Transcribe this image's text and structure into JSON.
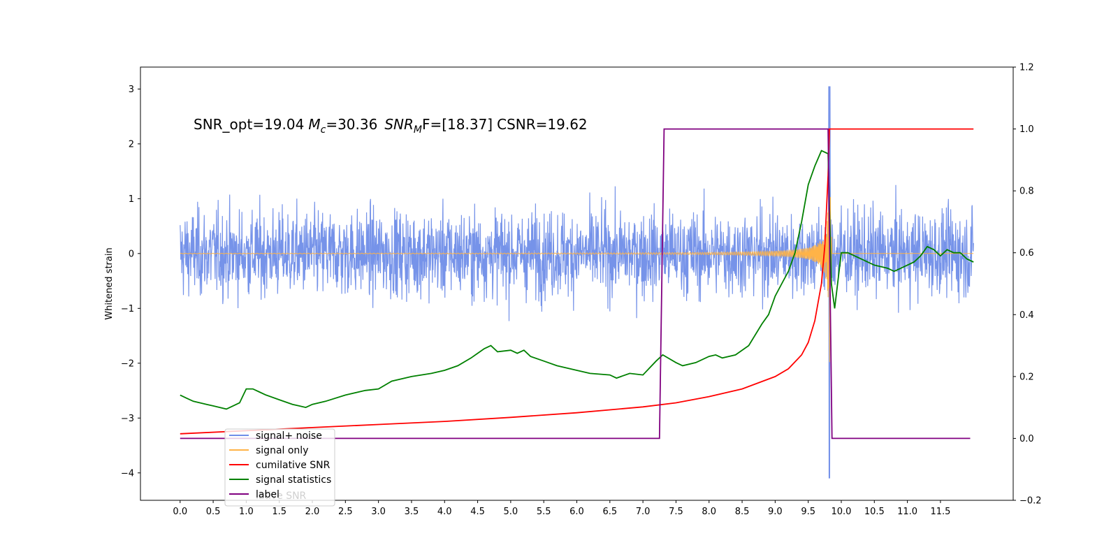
{
  "chart_data": {
    "type": "line",
    "title": "",
    "annotation": {
      "snr_opt_label": "SNR_opt=19.04",
      "mc_symbol": "M",
      "mc_sub": "c",
      "mc_value": "=30.36",
      "mf_symbol": "SNR",
      "mf_sub": "M",
      "mf_value": "F=[18.37]",
      "csnr_label": "CSNR=19.62"
    },
    "xlabel": "",
    "ylabel": "Whitened strain",
    "ylabel_right": "",
    "xlim": [
      -0.6,
      12.6
    ],
    "ylim": [
      -4.5,
      3.4
    ],
    "ylim_right": [
      -0.2,
      1.2
    ],
    "x_ticks": [
      "0.0",
      "0.5",
      "1.0",
      "1.5",
      "2.0",
      "2.5",
      "3.0",
      "3.5",
      "4.0",
      "4.5",
      "5.0",
      "5.5",
      "6.0",
      "6.5",
      "7.0",
      "7.5",
      "8.0",
      "8.5",
      "9.0",
      "9.5",
      "10.0",
      "10.5",
      "11.0",
      "11.5"
    ],
    "y_ticks": [
      "3",
      "2",
      "1",
      "0",
      "−1",
      "−2",
      "−3",
      "−4"
    ],
    "y_ticks_right": [
      "1.2",
      "1.0",
      "0.8",
      "0.6",
      "0.4",
      "0.2",
      "0.0",
      "−0.2"
    ],
    "grid": false,
    "legend_position": "lower-left",
    "series": [
      {
        "name": "signal+ noise",
        "color": "#6f8de8",
        "axis": "left",
        "kind": "noise",
        "x_range": [
          0,
          12.0
        ],
        "typical_range": [
          -1.3,
          1.3
        ],
        "max": 3.05,
        "min": -4.1,
        "peak_at": 9.82
      },
      {
        "name": "signal only",
        "color": "#ffb347",
        "axis": "left",
        "kind": "chirp",
        "merger_time": 9.82,
        "peak_amplitude": 2.7
      },
      {
        "name": "cumilative SNR",
        "color": "#ff0000",
        "axis": "right",
        "x": [
          0,
          1,
          2,
          3,
          4,
          5,
          6,
          7,
          7.5,
          8,
          8.5,
          9,
          9.2,
          9.4,
          9.5,
          9.6,
          9.7,
          9.75,
          9.8,
          9.82,
          9.85,
          12.0
        ],
        "y": [
          0.015,
          0.025,
          0.035,
          0.045,
          0.055,
          0.068,
          0.083,
          0.102,
          0.115,
          0.135,
          0.16,
          0.2,
          0.225,
          0.27,
          0.31,
          0.38,
          0.5,
          0.62,
          0.85,
          1.0,
          1.0,
          1.0
        ]
      },
      {
        "name": "signal statistics",
        "color": "#008000",
        "axis": "right",
        "x": [
          0,
          0.1,
          0.2,
          0.3,
          0.4,
          0.5,
          0.6,
          0.7,
          0.8,
          0.9,
          1.0,
          1.1,
          1.2,
          1.3,
          1.5,
          1.7,
          1.8,
          1.9,
          2.0,
          2.2,
          2.5,
          2.8,
          3.0,
          3.2,
          3.5,
          3.8,
          4.0,
          4.2,
          4.4,
          4.5,
          4.6,
          4.7,
          4.8,
          5.0,
          5.1,
          5.2,
          5.3,
          5.5,
          5.7,
          6.0,
          6.2,
          6.5,
          6.6,
          6.8,
          7.0,
          7.2,
          7.3,
          7.5,
          7.6,
          7.8,
          8.0,
          8.1,
          8.2,
          8.4,
          8.6,
          8.8,
          8.9,
          9.0,
          9.1,
          9.2,
          9.3,
          9.4,
          9.5,
          9.6,
          9.7,
          9.8,
          9.85,
          9.9,
          10.0,
          10.1,
          10.3,
          10.5,
          10.7,
          10.8,
          10.9,
          11.0,
          11.1,
          11.2,
          11.3,
          11.4,
          11.5,
          11.6,
          11.7,
          11.8,
          11.9,
          12.0
        ],
        "y": [
          0.14,
          0.13,
          0.12,
          0.115,
          0.11,
          0.105,
          0.1,
          0.095,
          0.105,
          0.115,
          0.16,
          0.16,
          0.15,
          0.14,
          0.125,
          0.11,
          0.105,
          0.1,
          0.11,
          0.12,
          0.14,
          0.155,
          0.16,
          0.185,
          0.2,
          0.21,
          0.22,
          0.235,
          0.26,
          0.275,
          0.29,
          0.3,
          0.28,
          0.285,
          0.275,
          0.285,
          0.265,
          0.25,
          0.235,
          0.22,
          0.21,
          0.205,
          0.195,
          0.21,
          0.205,
          0.25,
          0.27,
          0.245,
          0.235,
          0.245,
          0.265,
          0.27,
          0.26,
          0.27,
          0.3,
          0.37,
          0.4,
          0.46,
          0.5,
          0.54,
          0.6,
          0.7,
          0.82,
          0.88,
          0.93,
          0.92,
          0.5,
          0.42,
          0.6,
          0.6,
          0.58,
          0.56,
          0.55,
          0.54,
          0.55,
          0.56,
          0.57,
          0.59,
          0.62,
          0.61,
          0.59,
          0.61,
          0.6,
          0.6,
          0.58,
          0.57
        ],
        "note": "values read in right-axis units"
      },
      {
        "name": "label",
        "color": "#800080",
        "axis": "right",
        "x": [
          0,
          7.25,
          7.32,
          9.8,
          9.86,
          11.95
        ],
        "y": [
          0.0,
          0.0,
          1.0,
          1.0,
          0.0,
          0.0
        ]
      }
    ],
    "legend_extra": "lative SNR"
  }
}
